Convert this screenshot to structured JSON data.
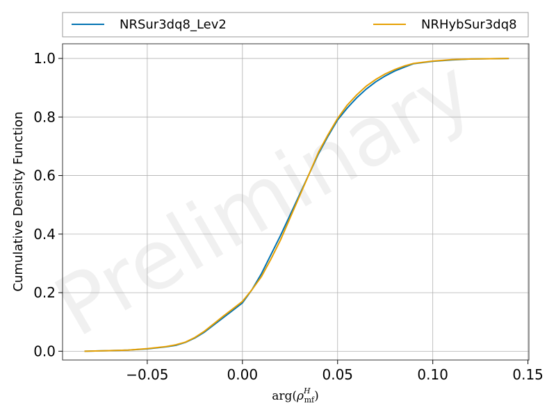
{
  "chart_data": {
    "type": "line",
    "title": "",
    "xlabel": "arg(ρ_mf^H)",
    "xlabel_parts": {
      "base": "arg(",
      "symbol": "ρ",
      "sub": "mf",
      "sup": "H",
      "close": ")"
    },
    "ylabel": "Cumulative Density Function",
    "xlim": [
      -0.0945,
      0.1505
    ],
    "ylim": [
      -0.03,
      1.05
    ],
    "x_ticks": [
      -0.05,
      0.0,
      0.05,
      0.1,
      0.15
    ],
    "x_tick_labels": [
      "−0.05",
      "0.00",
      "0.05",
      "0.10",
      "0.15"
    ],
    "y_ticks": [
      0.0,
      0.2,
      0.4,
      0.6,
      0.8,
      1.0
    ],
    "y_tick_labels": [
      "0.0",
      "0.2",
      "0.4",
      "0.6",
      "0.8",
      "1.0"
    ],
    "grid": true,
    "legend": {
      "position": "top, above plot",
      "columns": 2
    },
    "watermark": "Preliminary",
    "series": [
      {
        "name": "NRSur3dq8_Lev2",
        "color": "#0072b2",
        "x": [
          -0.083,
          -0.07,
          -0.06,
          -0.05,
          -0.04,
          -0.035,
          -0.03,
          -0.025,
          -0.02,
          -0.015,
          -0.01,
          -0.005,
          0.0,
          0.005,
          0.01,
          0.015,
          0.02,
          0.025,
          0.03,
          0.035,
          0.04,
          0.045,
          0.05,
          0.055,
          0.06,
          0.065,
          0.07,
          0.075,
          0.08,
          0.085,
          0.09,
          0.1,
          0.11,
          0.12,
          0.13,
          0.14
        ],
        "y": [
          0.0,
          0.002,
          0.004,
          0.008,
          0.015,
          0.02,
          0.03,
          0.045,
          0.065,
          0.09,
          0.115,
          0.14,
          0.165,
          0.21,
          0.265,
          0.33,
          0.395,
          0.465,
          0.535,
          0.605,
          0.675,
          0.735,
          0.79,
          0.83,
          0.865,
          0.895,
          0.92,
          0.94,
          0.957,
          0.97,
          0.982,
          0.99,
          0.995,
          0.998,
          0.999,
          1.0
        ]
      },
      {
        "name": "NRHybSur3dq8",
        "color": "#e69f00",
        "x": [
          -0.083,
          -0.07,
          -0.06,
          -0.05,
          -0.04,
          -0.035,
          -0.03,
          -0.025,
          -0.02,
          -0.015,
          -0.01,
          -0.005,
          0.0,
          0.005,
          0.01,
          0.015,
          0.02,
          0.025,
          0.03,
          0.035,
          0.04,
          0.045,
          0.05,
          0.055,
          0.06,
          0.065,
          0.07,
          0.075,
          0.08,
          0.085,
          0.09,
          0.1,
          0.11,
          0.12,
          0.13,
          0.14
        ],
        "y": [
          0.0,
          0.002,
          0.004,
          0.009,
          0.016,
          0.022,
          0.031,
          0.047,
          0.068,
          0.094,
          0.12,
          0.145,
          0.17,
          0.21,
          0.255,
          0.315,
          0.38,
          0.455,
          0.53,
          0.605,
          0.68,
          0.74,
          0.795,
          0.84,
          0.875,
          0.905,
          0.928,
          0.947,
          0.962,
          0.974,
          0.983,
          0.991,
          0.996,
          0.998,
          0.999,
          1.0
        ]
      }
    ]
  }
}
